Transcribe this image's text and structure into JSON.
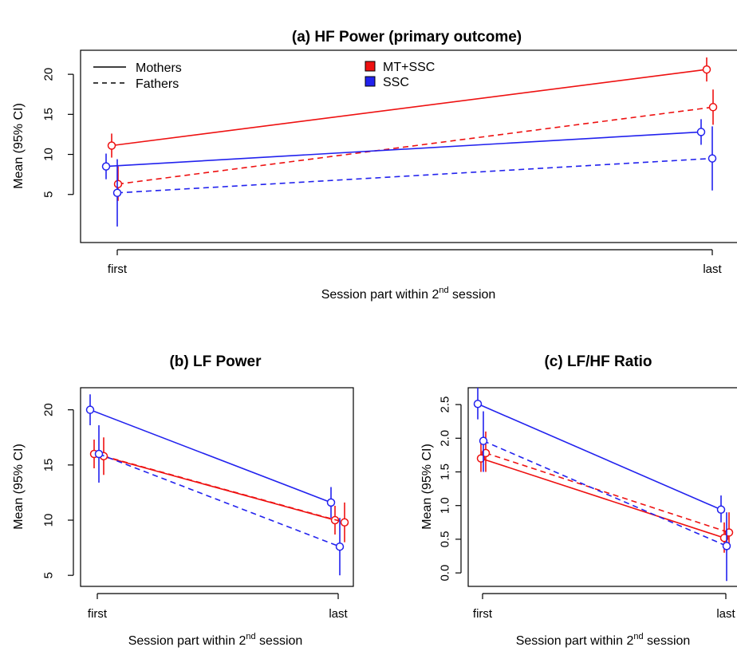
{
  "colors": {
    "mt_ssc": "#ee1111",
    "ssc": "#2222ee"
  },
  "legend": {
    "mothers": "Mothers",
    "fathers": "Fathers",
    "mt_ssc": "MT+SSC",
    "ssc": "SSC"
  },
  "xlabel": {
    "main": "Session part within 2",
    "sup": "nd",
    "tail": " session"
  },
  "chart_data": [
    {
      "type": "line",
      "title": "(a) HF Power (primary outcome)",
      "ylabel": "Mean (95% CI)",
      "categories": [
        "first",
        "last"
      ],
      "yticks": [
        "5",
        "10",
        "15",
        "20"
      ],
      "ylim": [
        -1,
        23
      ],
      "series": [
        {
          "name": "MT+SSC Mothers",
          "group": "mt_ssc",
          "parent": "mothers",
          "values": [
            11.1,
            20.6
          ],
          "lo": [
            9.6,
            19.1
          ],
          "hi": [
            12.6,
            22.1
          ]
        },
        {
          "name": "MT+SSC Fathers",
          "group": "mt_ssc",
          "parent": "fathers",
          "values": [
            6.3,
            15.9
          ],
          "lo": [
            4.2,
            13.7
          ],
          "hi": [
            8.5,
            18.1
          ]
        },
        {
          "name": "SSC Mothers",
          "group": "ssc",
          "parent": "mothers",
          "values": [
            8.5,
            12.8
          ],
          "lo": [
            6.9,
            11.2
          ],
          "hi": [
            10.1,
            14.4
          ]
        },
        {
          "name": "SSC Fathers",
          "group": "ssc",
          "parent": "fathers",
          "values": [
            5.2,
            9.5
          ],
          "lo": [
            1.0,
            5.5
          ],
          "hi": [
            9.4,
            13.5
          ]
        }
      ]
    },
    {
      "type": "line",
      "title": "(b) LF Power",
      "ylabel": "Mean (95% CI)",
      "categories": [
        "first",
        "last"
      ],
      "yticks": [
        "5",
        "10",
        "15",
        "20"
      ],
      "ylim": [
        4,
        22
      ],
      "series": [
        {
          "name": "MT+SSC Mothers",
          "group": "mt_ssc",
          "parent": "mothers",
          "values": [
            16.0,
            10.0
          ],
          "lo": [
            14.7,
            8.7
          ],
          "hi": [
            17.3,
            11.3
          ]
        },
        {
          "name": "MT+SSC Fathers",
          "group": "mt_ssc",
          "parent": "fathers",
          "values": [
            15.8,
            9.8
          ],
          "lo": [
            14.1,
            8.0
          ],
          "hi": [
            17.5,
            11.6
          ]
        },
        {
          "name": "SSC Mothers",
          "group": "ssc",
          "parent": "mothers",
          "values": [
            20.0,
            11.6
          ],
          "lo": [
            18.6,
            10.2
          ],
          "hi": [
            21.4,
            13.0
          ]
        },
        {
          "name": "SSC Fathers",
          "group": "ssc",
          "parent": "fathers",
          "values": [
            16.0,
            7.6
          ],
          "lo": [
            13.4,
            5.0
          ],
          "hi": [
            18.6,
            10.2
          ]
        }
      ]
    },
    {
      "type": "line",
      "title": "(c) LF/HF Ratio",
      "ylabel": "Mean (95% CI)",
      "categories": [
        "first",
        "last"
      ],
      "yticks": [
        "0.0",
        "0.5",
        "1.0",
        "1.5",
        "2.0",
        "2.5"
      ],
      "ylim": [
        -0.2,
        2.75
      ],
      "series": [
        {
          "name": "MT+SSC Mothers",
          "group": "mt_ssc",
          "parent": "mothers",
          "values": [
            1.7,
            0.52
          ],
          "lo": [
            1.5,
            0.3
          ],
          "hi": [
            1.92,
            0.75
          ]
        },
        {
          "name": "MT+SSC Fathers",
          "group": "mt_ssc",
          "parent": "fathers",
          "values": [
            1.78,
            0.6
          ],
          "lo": [
            1.5,
            0.35
          ],
          "hi": [
            2.1,
            0.9
          ]
        },
        {
          "name": "SSC Mothers",
          "group": "ssc",
          "parent": "mothers",
          "values": [
            2.51,
            0.94
          ],
          "lo": [
            2.28,
            0.75
          ],
          "hi": [
            2.75,
            1.15
          ]
        },
        {
          "name": "SSC Fathers",
          "group": "ssc",
          "parent": "fathers",
          "values": [
            1.96,
            0.4
          ],
          "lo": [
            1.5,
            -0.12
          ],
          "hi": [
            2.4,
            0.9
          ]
        }
      ]
    }
  ]
}
